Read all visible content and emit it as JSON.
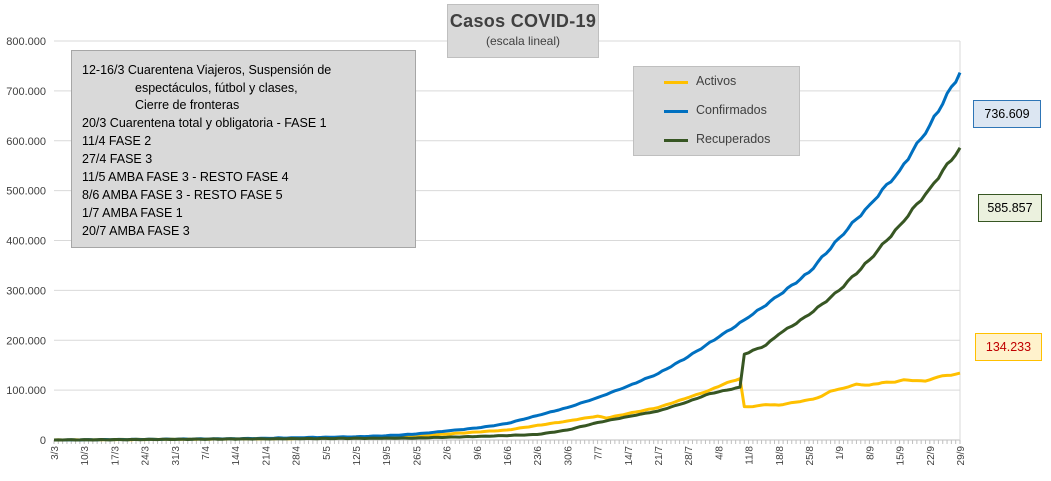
{
  "chart_data": {
    "type": "line",
    "title": "Casos COVID-19",
    "subtitle": "(escala lineal)",
    "ylim": [
      0,
      800000
    ],
    "y_ticks": [
      "0",
      "100.000",
      "200.000",
      "300.000",
      "400.000",
      "500.000",
      "600.000",
      "700.000",
      "800.000"
    ],
    "x_start": "3/3",
    "x_end": "29/9",
    "x_ticks": [
      "3/3",
      "10/3",
      "17/3",
      "24/3",
      "31/3",
      "7/4",
      "14/4",
      "21/4",
      "28/4",
      "5/5",
      "12/5",
      "19/5",
      "26/5",
      "2/6",
      "9/6",
      "16/6",
      "23/6",
      "30/6",
      "7/7",
      "14/7",
      "21/7",
      "28/7",
      "4/8",
      "11/8",
      "18/8",
      "25/8",
      "1/9",
      "8/9",
      "15/9",
      "22/9",
      "29/9"
    ],
    "grid": "horizontal",
    "legend_position": "top-right",
    "series": [
      {
        "name": "Activos",
        "color": "#ffc000",
        "points": [
          [
            "3/3",
            0
          ],
          [
            "28/4",
            3000
          ],
          [
            "26/5",
            8000
          ],
          [
            "16/6",
            20000
          ],
          [
            "30/6",
            38000
          ],
          [
            "7/7",
            48000
          ],
          [
            "9/7",
            44000
          ],
          [
            "14/7",
            53000
          ],
          [
            "21/7",
            65000
          ],
          [
            "28/7",
            85000
          ],
          [
            "2/8",
            100000
          ],
          [
            "6/8",
            115000
          ],
          [
            "9/8",
            123000
          ],
          [
            "10/8",
            67000
          ],
          [
            "12/8",
            67000
          ],
          [
            "15/8",
            71000
          ],
          [
            "18/8",
            70000
          ],
          [
            "22/8",
            76000
          ],
          [
            "26/8",
            82000
          ],
          [
            "28/8",
            88000
          ],
          [
            "30/8",
            98000
          ],
          [
            "1/9",
            102000
          ],
          [
            "3/9",
            106000
          ],
          [
            "5/9",
            112000
          ],
          [
            "8/9",
            110000
          ],
          [
            "11/9",
            115000
          ],
          [
            "14/9",
            116000
          ],
          [
            "16/9",
            121000
          ],
          [
            "19/9",
            119000
          ],
          [
            "21/9",
            118000
          ],
          [
            "23/9",
            124000
          ],
          [
            "25/9",
            129000
          ],
          [
            "27/9",
            130000
          ],
          [
            "29/9",
            134233
          ]
        ],
        "last_value_label": "134.233"
      },
      {
        "name": "Confirmados",
        "color": "#0070c0",
        "points": [
          [
            "3/3",
            0
          ],
          [
            "14/4",
            2500
          ],
          [
            "28/4",
            4500
          ],
          [
            "12/5",
            6500
          ],
          [
            "19/5",
            8500
          ],
          [
            "26/5",
            12000
          ],
          [
            "2/6",
            18000
          ],
          [
            "9/6",
            24000
          ],
          [
            "16/6",
            33000
          ],
          [
            "23/6",
            49000
          ],
          [
            "30/6",
            65000
          ],
          [
            "7/7",
            85000
          ],
          [
            "14/7",
            108000
          ],
          [
            "21/7",
            133000
          ],
          [
            "28/7",
            167000
          ],
          [
            "4/8",
            206000
          ],
          [
            "11/8",
            246000
          ],
          [
            "18/8",
            290000
          ],
          [
            "25/8",
            336000
          ],
          [
            "1/9",
            405000
          ],
          [
            "8/9",
            471000
          ],
          [
            "15/9",
            540000
          ],
          [
            "22/9",
            631000
          ],
          [
            "29/9",
            736609
          ]
        ],
        "last_value_label": "736.609"
      },
      {
        "name": "Recuperados",
        "color": "#375623",
        "points": [
          [
            "3/3",
            0
          ],
          [
            "26/5",
            4000
          ],
          [
            "9/6",
            7000
          ],
          [
            "23/6",
            11000
          ],
          [
            "30/6",
            20000
          ],
          [
            "7/7",
            35000
          ],
          [
            "14/7",
            47000
          ],
          [
            "21/7",
            58000
          ],
          [
            "28/7",
            77000
          ],
          [
            "2/8",
            93000
          ],
          [
            "6/8",
            100000
          ],
          [
            "9/8",
            106000
          ],
          [
            "10/8",
            172000
          ],
          [
            "15/8",
            190000
          ],
          [
            "18/8",
            212000
          ],
          [
            "25/8",
            251000
          ],
          [
            "1/9",
            300000
          ],
          [
            "8/9",
            361000
          ],
          [
            "15/9",
            430000
          ],
          [
            "22/9",
            504000
          ],
          [
            "29/9",
            585857
          ]
        ],
        "last_value_label": "585.857"
      }
    ],
    "annotations": [
      "12-16/3  Cuarentena Viajeros, Suspensión de",
      "espectáculos, fútbol y clases,",
      "Cierre de fronteras",
      "20/3  Cuarentena total y obligatoria - FASE 1",
      "11/4  FASE 2",
      "27/4  FASE 3",
      "11/5  AMBA FASE 3 - RESTO FASE 4",
      "8/6  AMBA FASE 3 - RESTO FASE 5",
      "1/7  AMBA FASE 1",
      "20/7  AMBA FASE 3"
    ]
  }
}
